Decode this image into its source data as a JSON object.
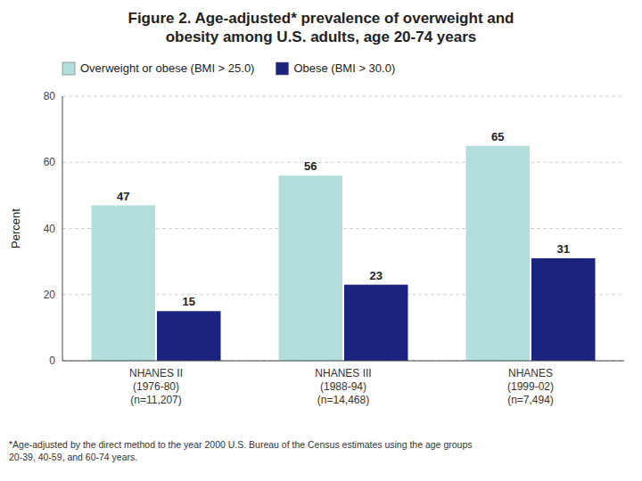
{
  "chart_data": {
    "type": "bar",
    "title": "Figure 2. Age-adjusted* prevalence of overweight and\nobesity among U.S. adults, age 20-74 years",
    "ylabel": "Percent",
    "categories": [
      "NHANES II\n(1976-80)\n(n=11,207)",
      "NHANES III\n(1988-94)\n(n=14,468)",
      "NHANES\n(1999-02)\n(n=7,494)"
    ],
    "series": [
      {
        "name": "Overweight or obese (BMI > 25.0)",
        "color": "#b2dfdb",
        "values": [
          47,
          56,
          65
        ]
      },
      {
        "name": "Obese (BMI > 30.0)",
        "color": "#1a237e",
        "values": [
          15,
          23,
          31
        ]
      }
    ],
    "ylim": [
      0,
      80
    ],
    "yticks": [
      0,
      20,
      40,
      60,
      80
    ],
    "grid": true,
    "legend": "upper left",
    "data_labels": true,
    "annotations": [
      "*Age-adjusted by the direct method to the year 2000 U.S. Bureau of the Census estimates using the age groups\n20-39, 40-59, and 60-74 years."
    ]
  }
}
